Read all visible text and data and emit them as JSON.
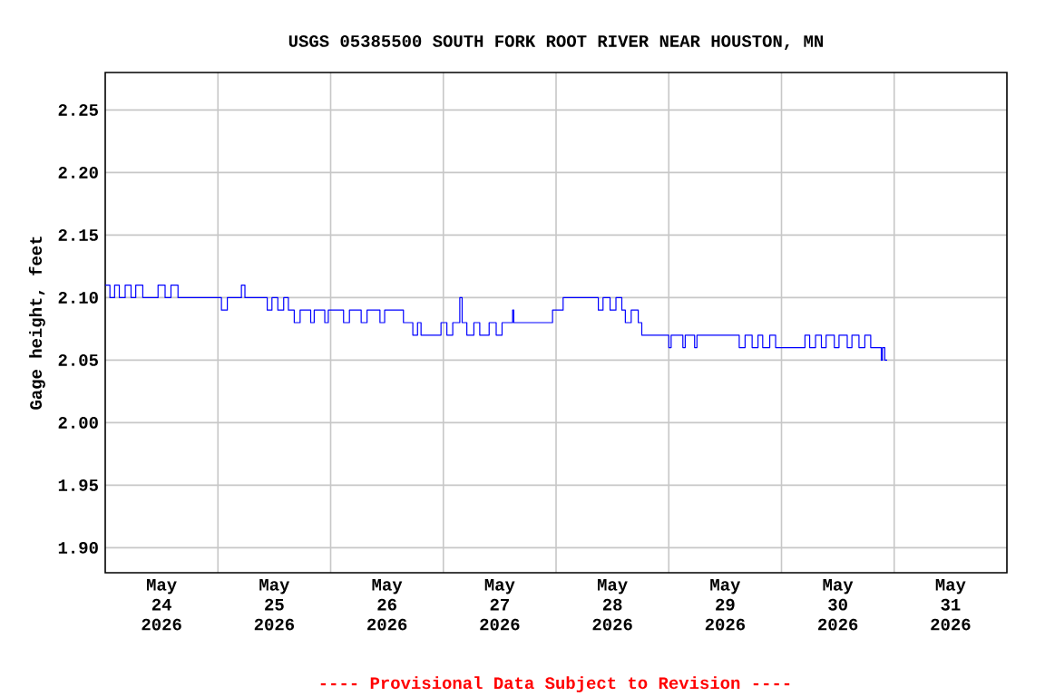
{
  "chart_data": {
    "type": "step",
    "title": "USGS 05385500 SOUTH FORK ROOT RIVER NEAR HOUSTON, MN",
    "ylabel": "Gage height, feet",
    "annotations": [
      "---- Provisional Data Subject to Revision ----"
    ],
    "xlim": [
      "2026-05-24T00:00",
      "2026-06-01T00:00"
    ],
    "xticks": [
      {
        "value": "2026-05-24T12:00",
        "label": "May 24 2026"
      },
      {
        "value": "2026-05-25T12:00",
        "label": "May 25 2026"
      },
      {
        "value": "2026-05-26T12:00",
        "label": "May 26 2026"
      },
      {
        "value": "2026-05-27T12:00",
        "label": "May 27 2026"
      },
      {
        "value": "2026-05-28T12:00",
        "label": "May 28 2026"
      },
      {
        "value": "2026-05-29T12:00",
        "label": "May 29 2026"
      },
      {
        "value": "2026-05-30T12:00",
        "label": "May 30 2026"
      },
      {
        "value": "2026-05-31T12:00",
        "label": "May 31 2026"
      },
      {
        "value": "2026-05-25T00:00",
        "label": null
      },
      {
        "value": "2026-05-26T00:00",
        "label": null
      },
      {
        "value": "2026-05-27T00:00",
        "label": null
      },
      {
        "value": "2026-05-28T00:00",
        "label": null
      },
      {
        "value": "2026-05-29T00:00",
        "label": null
      },
      {
        "value": "2026-05-30T00:00",
        "label": null
      },
      {
        "value": "2026-05-31T00:00",
        "label": null
      }
    ],
    "ylim": [
      1.88,
      2.28
    ],
    "yticks": [
      {
        "value": 1.9,
        "label": "1.90"
      },
      {
        "value": 1.95,
        "label": "1.95"
      },
      {
        "value": 2.0,
        "label": "2.00"
      },
      {
        "value": 2.05,
        "label": "2.05"
      },
      {
        "value": 2.1,
        "label": "2.10"
      },
      {
        "value": 2.15,
        "label": "2.15"
      },
      {
        "value": 2.2,
        "label": "2.20"
      },
      {
        "value": 2.25,
        "label": "2.25"
      }
    ],
    "grid": true,
    "series": [
      {
        "color": "#0000ff",
        "x": [
          "2026-05-24T00:00",
          "2026-05-24T01:00",
          "2026-05-24T02:00",
          "2026-05-24T03:00",
          "2026-05-24T04:15",
          "2026-05-24T05:30",
          "2026-05-24T06:30",
          "2026-05-24T08:00",
          "2026-05-24T11:15",
          "2026-05-24T12:45",
          "2026-05-24T14:00",
          "2026-05-24T15:30",
          "2026-05-25T00:45",
          "2026-05-25T02:00",
          "2026-05-25T05:00",
          "2026-05-25T05:45",
          "2026-05-25T10:30",
          "2026-05-25T11:30",
          "2026-05-25T12:45",
          "2026-05-25T14:00",
          "2026-05-25T15:00",
          "2026-05-25T16:15",
          "2026-05-25T17:30",
          "2026-05-25T19:45",
          "2026-05-25T20:30",
          "2026-05-25T22:45",
          "2026-05-25T23:30",
          "2026-05-26T02:45",
          "2026-05-26T04:00",
          "2026-05-26T06:30",
          "2026-05-26T07:45",
          "2026-05-26T10:30",
          "2026-05-26T11:30",
          "2026-05-26T15:30",
          "2026-05-26T17:30",
          "2026-05-26T18:30",
          "2026-05-26T19:15",
          "2026-05-26T23:30",
          "2026-05-27T00:45",
          "2026-05-27T02:00",
          "2026-05-27T03:30",
          "2026-05-27T04:00",
          "2026-05-27T05:00",
          "2026-05-27T06:30",
          "2026-05-27T07:45",
          "2026-05-27T09:45",
          "2026-05-27T11:15",
          "2026-05-27T12:30",
          "2026-05-27T14:45",
          "2026-05-27T15:00",
          "2026-05-27T23:15",
          "2026-05-28T01:30",
          "2026-05-28T09:00",
          "2026-05-28T10:00",
          "2026-05-28T11:30",
          "2026-05-28T12:45",
          "2026-05-28T14:00",
          "2026-05-28T14:45",
          "2026-05-28T16:00",
          "2026-05-28T17:30",
          "2026-05-28T18:15",
          "2026-05-29T00:00",
          "2026-05-29T00:30",
          "2026-05-29T03:00",
          "2026-05-29T03:30",
          "2026-05-29T05:30",
          "2026-05-29T06:00",
          "2026-05-29T15:00",
          "2026-05-29T16:15",
          "2026-05-29T17:45",
          "2026-05-29T19:00",
          "2026-05-29T20:00",
          "2026-05-29T21:30",
          "2026-05-29T22:45",
          "2026-05-30T05:00",
          "2026-05-30T06:00",
          "2026-05-30T07:15",
          "2026-05-30T08:30",
          "2026-05-30T09:30",
          "2026-05-30T11:15",
          "2026-05-30T12:15",
          "2026-05-30T14:00",
          "2026-05-30T15:00",
          "2026-05-30T16:30",
          "2026-05-30T17:45",
          "2026-05-30T19:00",
          "2026-05-30T21:15",
          "2026-05-30T21:30",
          "2026-05-30T22:00",
          "2026-05-30T22:30"
        ],
        "values": [
          2.11,
          2.1,
          2.11,
          2.1,
          2.11,
          2.1,
          2.11,
          2.1,
          2.11,
          2.1,
          2.11,
          2.1,
          2.09,
          2.1,
          2.11,
          2.1,
          2.09,
          2.1,
          2.09,
          2.1,
          2.09,
          2.08,
          2.09,
          2.08,
          2.09,
          2.08,
          2.09,
          2.08,
          2.09,
          2.08,
          2.09,
          2.08,
          2.09,
          2.08,
          2.07,
          2.08,
          2.07,
          2.08,
          2.07,
          2.08,
          2.1,
          2.08,
          2.07,
          2.08,
          2.07,
          2.08,
          2.07,
          2.08,
          2.09,
          2.08,
          2.09,
          2.1,
          2.09,
          2.1,
          2.09,
          2.1,
          2.09,
          2.08,
          2.09,
          2.08,
          2.07,
          2.06,
          2.07,
          2.06,
          2.07,
          2.06,
          2.07,
          2.06,
          2.07,
          2.06,
          2.07,
          2.06,
          2.07,
          2.06,
          2.07,
          2.06,
          2.07,
          2.06,
          2.07,
          2.06,
          2.07,
          2.06,
          2.07,
          2.06,
          2.07,
          2.06,
          2.05,
          2.06,
          2.05,
          2.05
        ]
      }
    ]
  }
}
